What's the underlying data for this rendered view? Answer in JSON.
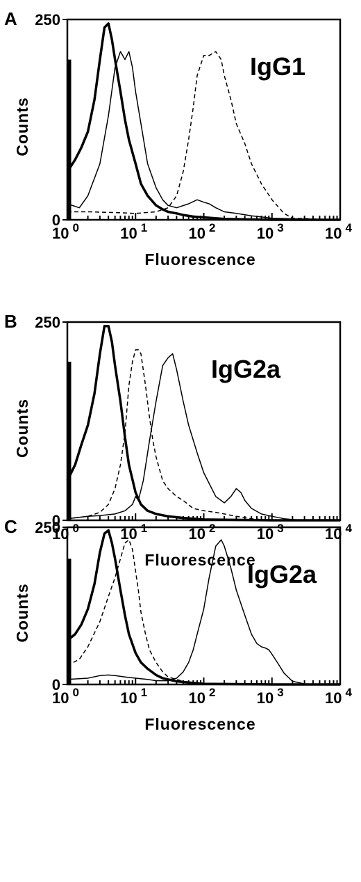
{
  "chart_data": [
    {
      "type": "line",
      "panel_label": "A",
      "annotation": "IgG1",
      "xlabel": "Fluorescence",
      "ylabel": "Counts",
      "xscale": "log",
      "xlim": [
        1,
        10000
      ],
      "ylim": [
        0,
        250
      ],
      "x_tick_labels": [
        {
          "base": "10",
          "exp": "0"
        },
        {
          "base": "10",
          "exp": "1"
        },
        {
          "base": "10",
          "exp": "2"
        },
        {
          "base": "10",
          "exp": "3"
        },
        {
          "base": "10",
          "exp": "4"
        }
      ],
      "y_tick_labels": [
        "0",
        "250"
      ],
      "series": [
        {
          "style": "thick",
          "x": [
            1,
            1.3,
            1.6,
            2,
            2.5,
            3,
            3.5,
            4,
            4.5,
            5,
            6,
            7,
            8,
            10,
            12,
            15,
            20,
            25,
            30,
            40,
            50,
            70,
            100,
            200,
            1000,
            10000
          ],
          "y": [
            60,
            75,
            90,
            110,
            150,
            200,
            240,
            245,
            225,
            200,
            160,
            125,
            100,
            70,
            45,
            30,
            18,
            13,
            10,
            8,
            6,
            4,
            3,
            1,
            0,
            0
          ]
        },
        {
          "style": "thin",
          "x": [
            1,
            1.5,
            2,
            3,
            4,
            5,
            6,
            7,
            8,
            9,
            10,
            12,
            15,
            20,
            25,
            30,
            40,
            60,
            80,
            100,
            120,
            150,
            200,
            300,
            500,
            1000,
            10000
          ],
          "y": [
            20,
            15,
            30,
            70,
            130,
            190,
            210,
            200,
            210,
            190,
            160,
            120,
            70,
            40,
            25,
            18,
            15,
            20,
            25,
            22,
            20,
            15,
            10,
            8,
            5,
            2,
            0
          ]
        },
        {
          "style": "dashed",
          "x": [
            1,
            2,
            5,
            10,
            20,
            30,
            40,
            50,
            60,
            70,
            80,
            100,
            120,
            150,
            180,
            200,
            250,
            300,
            400,
            500,
            700,
            1000,
            1500,
            2000,
            10000
          ],
          "y": [
            10,
            10,
            9,
            8,
            10,
            15,
            30,
            60,
            100,
            140,
            180,
            205,
            205,
            210,
            200,
            180,
            150,
            120,
            95,
            70,
            45,
            25,
            8,
            2,
            0
          ]
        }
      ]
    },
    {
      "type": "line",
      "panel_label": "B",
      "annotation": "IgG2a",
      "xlabel": "Fluorescence",
      "ylabel": "Counts",
      "xscale": "log",
      "xlim": [
        1,
        10000
      ],
      "ylim": [
        0,
        250
      ],
      "x_tick_labels": [
        {
          "base": "10",
          "exp": "0"
        },
        {
          "base": "10",
          "exp": "1"
        },
        {
          "base": "10",
          "exp": "2"
        },
        {
          "base": "10",
          "exp": "3"
        },
        {
          "base": "10",
          "exp": "4"
        }
      ],
      "y_tick_labels": [
        "0",
        "250"
      ],
      "series": [
        {
          "style": "thick",
          "x": [
            1,
            1.3,
            1.6,
            2,
            2.5,
            3,
            3.5,
            4,
            4.5,
            5,
            6,
            7,
            8,
            10,
            12,
            15,
            20,
            30,
            50,
            100,
            1000,
            10000
          ],
          "y": [
            50,
            70,
            95,
            120,
            160,
            210,
            245,
            245,
            225,
            195,
            150,
            105,
            70,
            35,
            20,
            12,
            8,
            5,
            3,
            1,
            0,
            0
          ]
        },
        {
          "style": "thin",
          "x": [
            1,
            2,
            3,
            5,
            7,
            9,
            10,
            11,
            13,
            16,
            20,
            25,
            30,
            35,
            40,
            50,
            60,
            80,
            100,
            150,
            200,
            250,
            300,
            350,
            400,
            500,
            700,
            1000,
            1500,
            2000,
            3000,
            10000
          ],
          "y": [
            2,
            5,
            6,
            8,
            12,
            20,
            30,
            25,
            50,
            100,
            150,
            195,
            205,
            210,
            190,
            150,
            120,
            85,
            60,
            30,
            22,
            30,
            40,
            35,
            25,
            15,
            8,
            5,
            2,
            1,
            0,
            0
          ]
        },
        {
          "style": "dashed",
          "x": [
            1,
            2,
            3,
            4,
            5,
            6,
            7,
            8,
            9,
            10,
            11,
            12,
            14,
            16,
            18,
            20,
            25,
            30,
            40,
            50,
            70,
            100,
            150,
            200,
            300,
            500,
            1000,
            10000
          ],
          "y": [
            2,
            5,
            10,
            20,
            40,
            70,
            110,
            170,
            200,
            215,
            215,
            210,
            170,
            130,
            100,
            80,
            50,
            40,
            30,
            25,
            15,
            12,
            10,
            8,
            5,
            2,
            0,
            0
          ]
        }
      ]
    },
    {
      "type": "line",
      "panel_label": "C",
      "annotation": "IgG2a",
      "xlabel": "Fluorescence",
      "ylabel": "Counts",
      "xscale": "log",
      "xlim": [
        1,
        10000
      ],
      "ylim": [
        0,
        250
      ],
      "x_tick_labels": [
        {
          "base": "10",
          "exp": "0"
        },
        {
          "base": "10",
          "exp": "1"
        },
        {
          "base": "10",
          "exp": "2"
        },
        {
          "base": "10",
          "exp": "3"
        },
        {
          "base": "10",
          "exp": "4"
        }
      ],
      "y_tick_labels": [
        "0",
        "250"
      ],
      "series": [
        {
          "style": "thick",
          "x": [
            1,
            1.3,
            1.6,
            2,
            2.5,
            3,
            3.5,
            4,
            4.5,
            5,
            6,
            7,
            8,
            10,
            12,
            15,
            20,
            25,
            30,
            40,
            60,
            100,
            1000,
            10000
          ],
          "y": [
            70,
            80,
            95,
            120,
            160,
            210,
            240,
            245,
            225,
            200,
            150,
            110,
            80,
            50,
            35,
            25,
            15,
            10,
            8,
            5,
            3,
            1,
            0,
            0
          ]
        },
        {
          "style": "thin",
          "x": [
            1,
            2,
            3,
            4,
            5,
            7,
            10,
            15,
            20,
            30,
            40,
            50,
            60,
            70,
            80,
            100,
            120,
            150,
            180,
            200,
            250,
            300,
            400,
            500,
            600,
            700,
            800,
            900,
            1000,
            1200,
            1500,
            2000,
            3000,
            10000
          ],
          "y": [
            8,
            10,
            14,
            15,
            14,
            12,
            10,
            8,
            6,
            6,
            10,
            20,
            35,
            55,
            80,
            120,
            170,
            220,
            230,
            220,
            185,
            150,
            110,
            80,
            65,
            60,
            58,
            55,
            48,
            35,
            18,
            5,
            1,
            0
          ]
        },
        {
          "style": "dashed",
          "x": [
            1,
            1.5,
            2,
            3,
            4,
            5,
            6,
            7,
            8,
            9,
            10,
            11,
            12,
            14,
            16,
            20,
            25,
            30,
            40,
            50,
            70,
            100,
            200,
            500,
            10000
          ],
          "y": [
            30,
            40,
            60,
            100,
            140,
            170,
            200,
            225,
            230,
            215,
            180,
            150,
            115,
            80,
            55,
            35,
            20,
            12,
            8,
            5,
            3,
            2,
            1,
            0,
            0
          ]
        }
      ]
    }
  ]
}
